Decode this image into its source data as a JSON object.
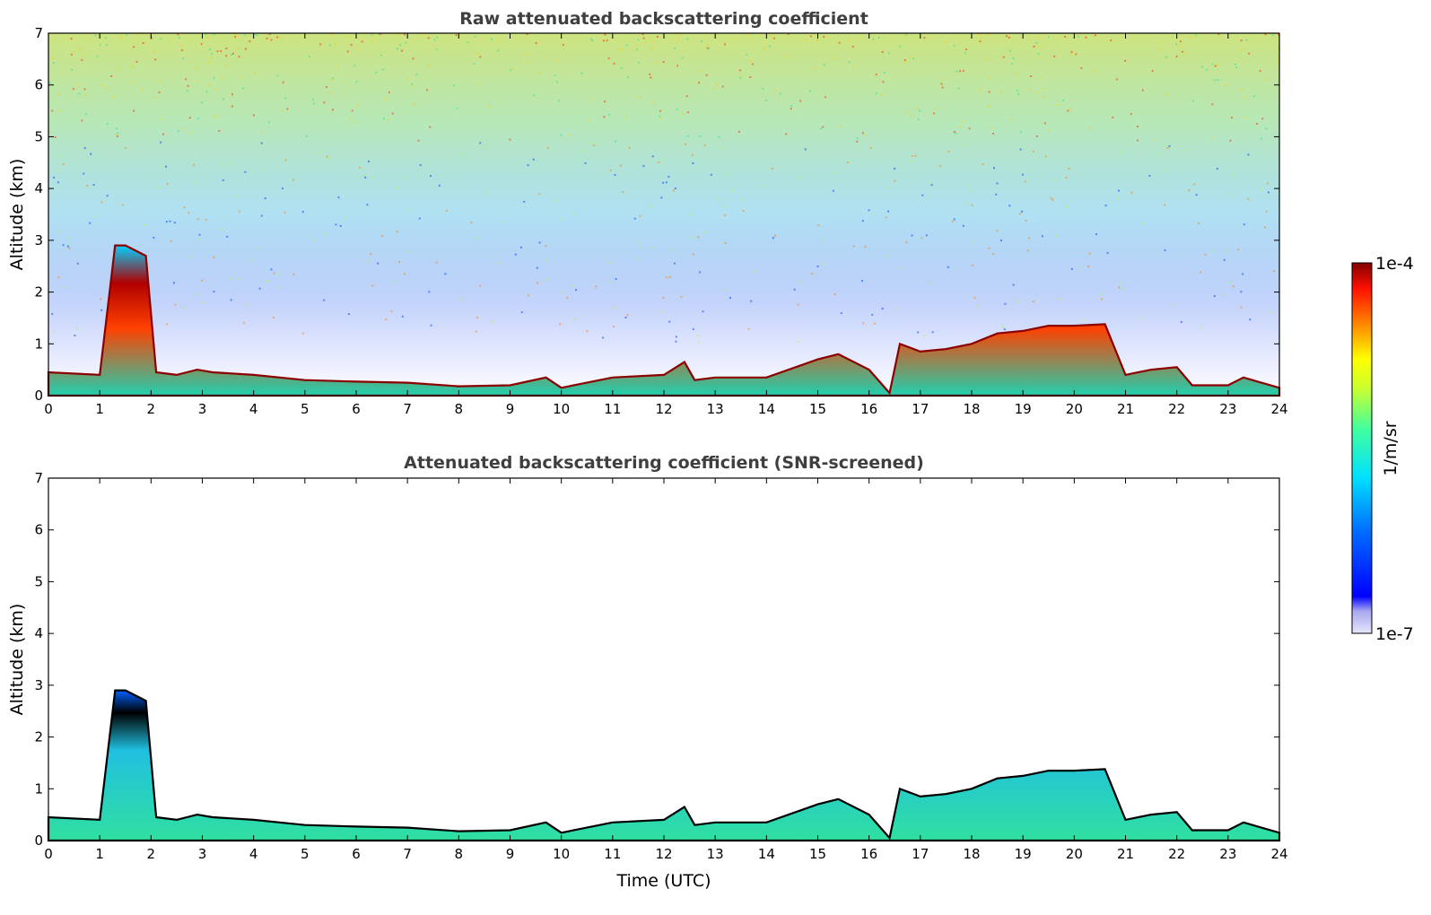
{
  "chart_data": [
    {
      "type": "heatmap",
      "title": "Raw attenuated backscattering coefficient",
      "ylabel": "Altitude (km)",
      "xlabel": "",
      "xlim": [
        0,
        24
      ],
      "ylim": [
        0,
        7
      ],
      "xticks": [
        "0",
        "1",
        "2",
        "3",
        "4",
        "5",
        "6",
        "7",
        "8",
        "9",
        "10",
        "11",
        "12",
        "13",
        "14",
        "15",
        "16",
        "17",
        "18",
        "19",
        "20",
        "21",
        "22",
        "23",
        "24"
      ],
      "yticks": [
        "0",
        "1",
        "2",
        "3",
        "4",
        "5",
        "6",
        "7"
      ],
      "layer_top_km": [
        [
          0,
          0.45
        ],
        [
          1,
          0.4
        ],
        [
          1.3,
          2.9
        ],
        [
          1.5,
          2.9
        ],
        [
          1.7,
          2.8
        ],
        [
          1.9,
          2.7
        ],
        [
          2.1,
          0.45
        ],
        [
          2.5,
          0.4
        ],
        [
          2.9,
          0.5
        ],
        [
          3.2,
          0.45
        ],
        [
          4,
          0.4
        ],
        [
          5,
          0.3
        ],
        [
          6,
          0.27
        ],
        [
          7,
          0.25
        ],
        [
          8,
          0.18
        ],
        [
          9,
          0.2
        ],
        [
          9.7,
          0.35
        ],
        [
          10,
          0.15
        ],
        [
          11,
          0.35
        ],
        [
          12,
          0.4
        ],
        [
          12.4,
          0.65
        ],
        [
          12.6,
          0.3
        ],
        [
          13,
          0.35
        ],
        [
          14,
          0.35
        ],
        [
          15,
          0.7
        ],
        [
          15.4,
          0.8
        ],
        [
          16,
          0.5
        ],
        [
          16.4,
          0.05
        ],
        [
          16.6,
          1.0
        ],
        [
          17,
          0.85
        ],
        [
          17.5,
          0.9
        ],
        [
          18,
          1.0
        ],
        [
          18.5,
          1.2
        ],
        [
          19,
          1.25
        ],
        [
          19.5,
          1.35
        ],
        [
          20,
          1.35
        ],
        [
          20.6,
          1.38
        ],
        [
          21,
          0.4
        ],
        [
          21.5,
          0.5
        ],
        [
          22,
          0.55
        ],
        [
          22.3,
          0.2
        ],
        [
          23,
          0.2
        ],
        [
          23.3,
          0.35
        ],
        [
          24,
          0.15
        ]
      ],
      "colorbar": {
        "min": "1e-7",
        "max": "1e-4",
        "label": "1/m/sr",
        "scale": "log",
        "colormap": "jet"
      }
    },
    {
      "type": "heatmap",
      "title": "Attenuated backscattering coefficient (SNR-screened)",
      "ylabel": "Altitude (km)",
      "xlabel": "Time (UTC)",
      "xlim": [
        0,
        24
      ],
      "ylim": [
        0,
        7
      ],
      "xticks": [
        "0",
        "1",
        "2",
        "3",
        "4",
        "5",
        "6",
        "7",
        "8",
        "9",
        "10",
        "11",
        "12",
        "13",
        "14",
        "15",
        "16",
        "17",
        "18",
        "19",
        "20",
        "21",
        "22",
        "23",
        "24"
      ],
      "yticks": [
        "0",
        "1",
        "2",
        "3",
        "4",
        "5",
        "6",
        "7"
      ],
      "screened": true
    }
  ],
  "colors": {
    "title": "#3f3f3f",
    "axes": "#000000",
    "colormap": [
      "#e6e6fa",
      "#0000ff",
      "#0080ff",
      "#00e5ff",
      "#40ff80",
      "#ffff00",
      "#ff8000",
      "#ff0000",
      "#800000"
    ]
  }
}
